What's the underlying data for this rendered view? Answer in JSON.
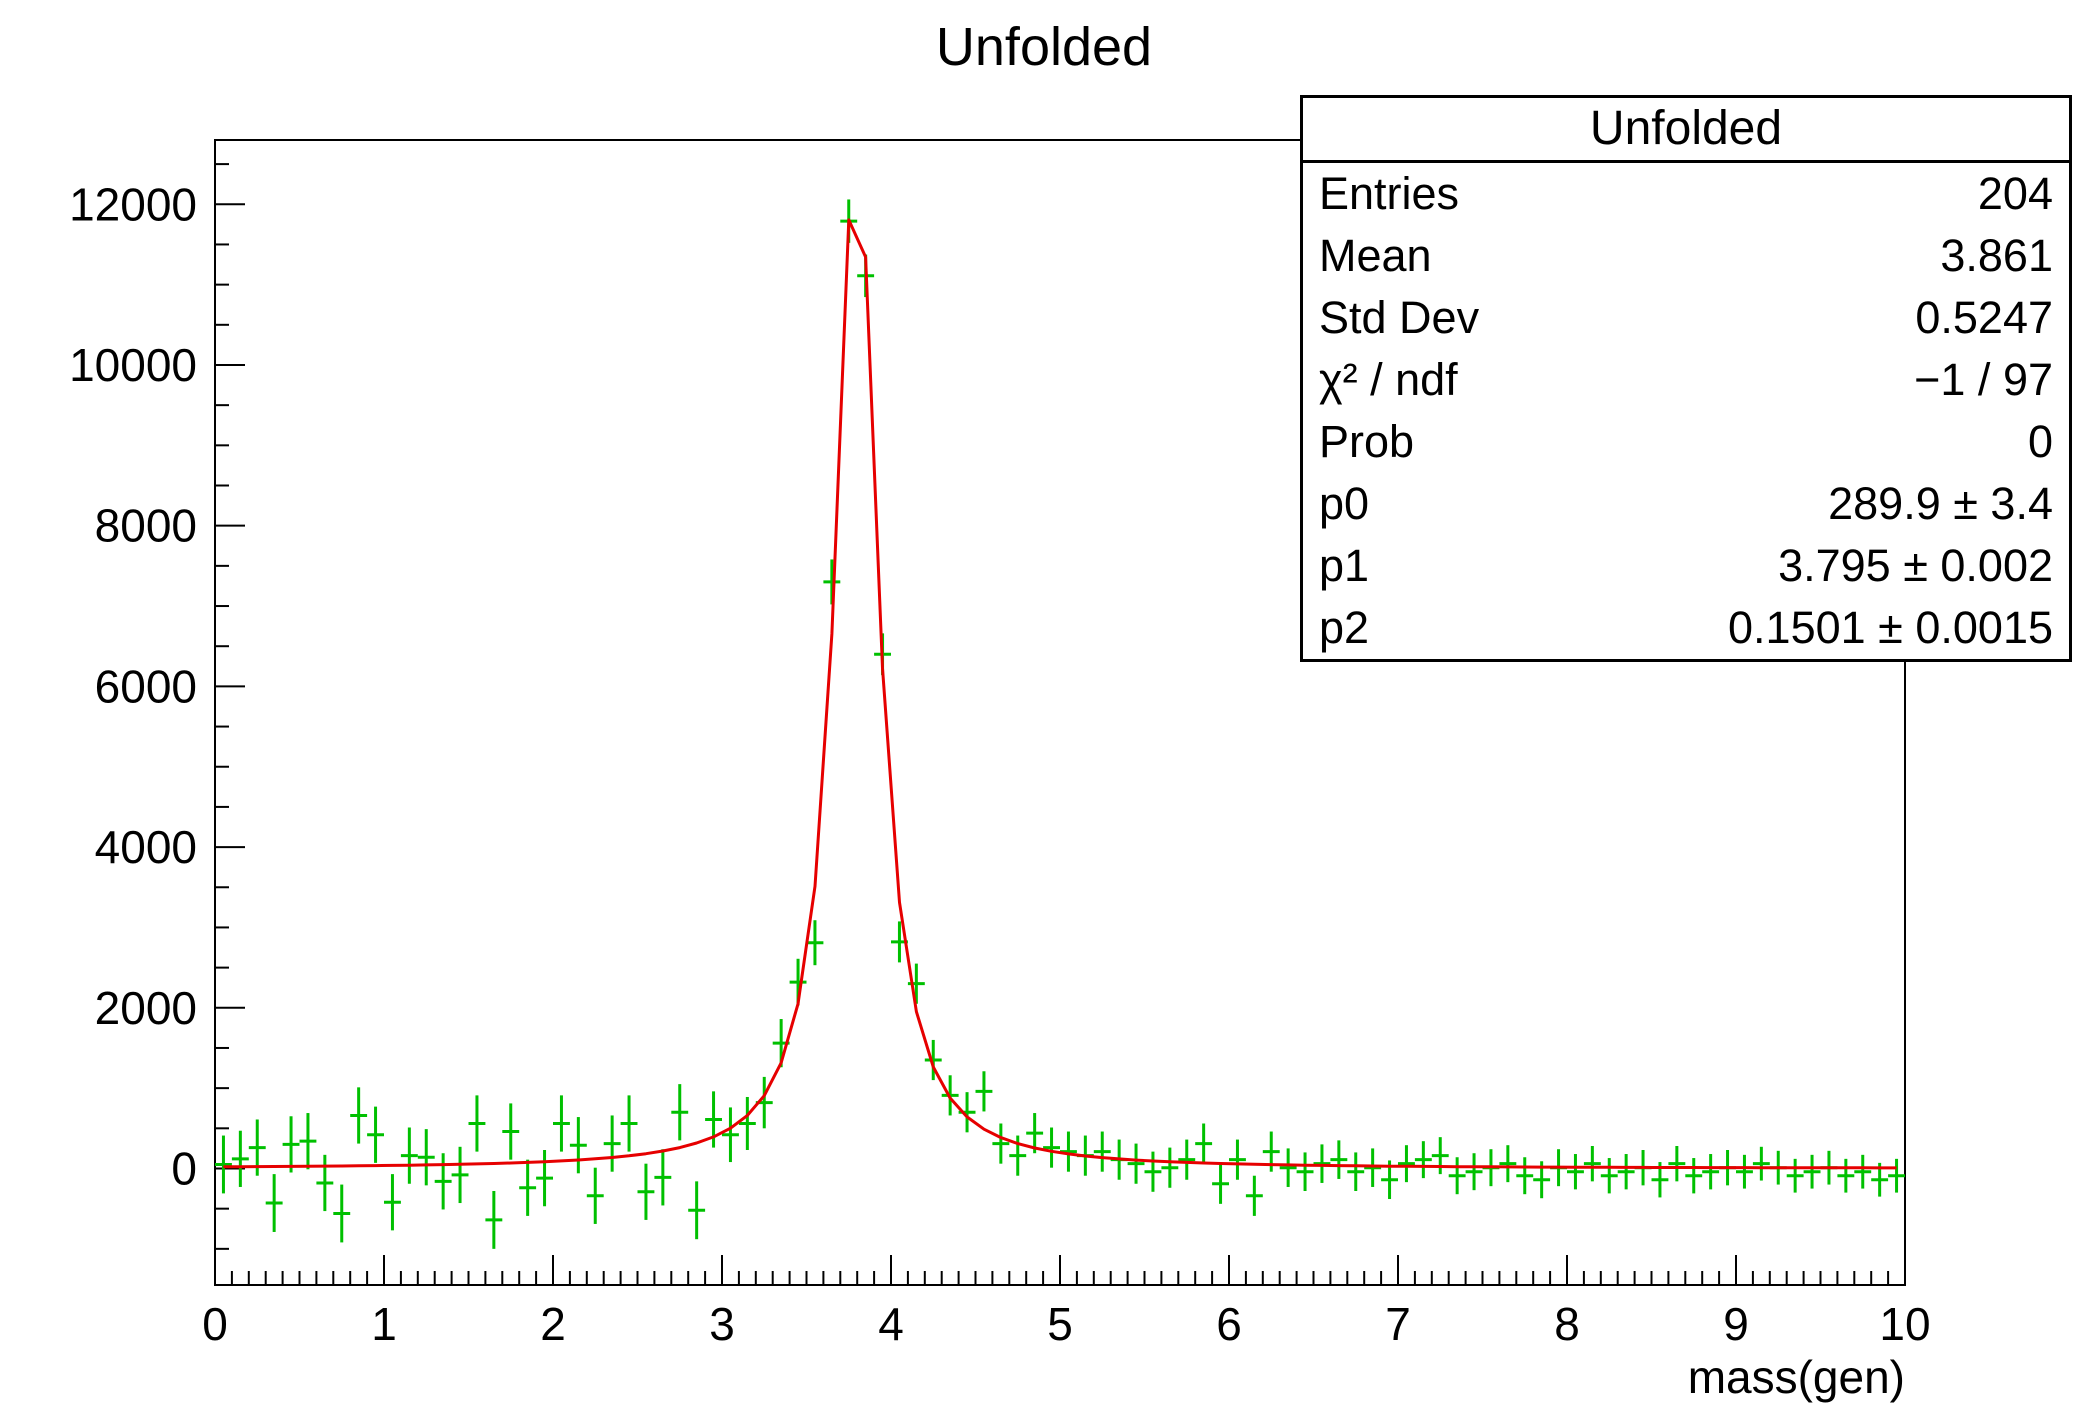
{
  "page": {
    "title": "Unfolded"
  },
  "colors": {
    "points": "#00c000",
    "fit": "#e60000",
    "frame": "#000000",
    "text": "#000000"
  },
  "axes": {
    "x": {
      "label": "mass(gen)",
      "min": 0,
      "max": 10,
      "major_ticks": [
        0,
        1,
        2,
        3,
        4,
        5,
        6,
        7,
        8,
        9,
        10
      ],
      "minor_step": 0.1
    },
    "y": {
      "label": "",
      "min": -1450,
      "max": 12800,
      "major_ticks": [
        0,
        2000,
        4000,
        6000,
        8000,
        10000,
        12000
      ],
      "minor_step": 500
    }
  },
  "stats": {
    "title": "Unfolded",
    "rows": [
      {
        "label": "Entries",
        "value": "204"
      },
      {
        "label": "Mean",
        "value": "3.861"
      },
      {
        "label": "Std Dev",
        "value": "0.5247"
      },
      {
        "label": "χ² / ndf",
        "value": "−1 / 97"
      },
      {
        "label": "Prob",
        "value": "0"
      },
      {
        "label": "p0",
        "value": "289.9 ± 3.4"
      },
      {
        "label": "p1",
        "value": "3.795 ± 0.002"
      },
      {
        "label": "p2",
        "value": "0.1501 ± 0.0015"
      }
    ]
  },
  "chart_data": {
    "type": "scatter",
    "title": "Unfolded",
    "xlabel": "mass(gen)",
    "ylabel": "",
    "xlim": [
      0,
      10
    ],
    "ylim": [
      -1450,
      12800
    ],
    "legend": "none",
    "grid": false,
    "series_info": [
      {
        "name": "unfolded-data",
        "style": "green error-bar crosses, bin width 0.1"
      },
      {
        "name": "fit-curve",
        "style": "red line, p0/((x-p1)^2+p2^2)"
      }
    ],
    "points": [
      [
        0.05,
        50,
        360
      ],
      [
        0.15,
        120,
        350
      ],
      [
        0.25,
        260,
        350
      ],
      [
        0.35,
        -430,
        360
      ],
      [
        0.45,
        300,
        350
      ],
      [
        0.55,
        340,
        350
      ],
      [
        0.65,
        -180,
        350
      ],
      [
        0.75,
        -560,
        360
      ],
      [
        0.85,
        660,
        350
      ],
      [
        0.95,
        420,
        350
      ],
      [
        1.05,
        -420,
        350
      ],
      [
        1.15,
        160,
        350
      ],
      [
        1.25,
        140,
        350
      ],
      [
        1.35,
        -160,
        350
      ],
      [
        1.45,
        -80,
        350
      ],
      [
        1.55,
        560,
        350
      ],
      [
        1.65,
        -640,
        360
      ],
      [
        1.75,
        460,
        350
      ],
      [
        1.85,
        -240,
        350
      ],
      [
        1.95,
        -120,
        350
      ],
      [
        2.05,
        560,
        350
      ],
      [
        2.15,
        290,
        350
      ],
      [
        2.25,
        -340,
        350
      ],
      [
        2.35,
        310,
        350
      ],
      [
        2.45,
        560,
        350
      ],
      [
        2.55,
        -290,
        350
      ],
      [
        2.65,
        -110,
        350
      ],
      [
        2.75,
        700,
        350
      ],
      [
        2.85,
        -520,
        360
      ],
      [
        2.95,
        610,
        350
      ],
      [
        3.05,
        420,
        340
      ],
      [
        3.15,
        560,
        330
      ],
      [
        3.25,
        820,
        320
      ],
      [
        3.35,
        1560,
        300
      ],
      [
        3.45,
        2320,
        290
      ],
      [
        3.55,
        2810,
        280
      ],
      [
        3.65,
        7300,
        280
      ],
      [
        3.75,
        11790,
        270
      ],
      [
        3.85,
        11110,
        265
      ],
      [
        3.95,
        6400,
        260
      ],
      [
        4.05,
        2820,
        255
      ],
      [
        4.15,
        2300,
        250
      ],
      [
        4.25,
        1350,
        250
      ],
      [
        4.35,
        910,
        250
      ],
      [
        4.45,
        700,
        250
      ],
      [
        4.55,
        960,
        250
      ],
      [
        4.65,
        310,
        250
      ],
      [
        4.75,
        160,
        250
      ],
      [
        4.85,
        440,
        250
      ],
      [
        4.95,
        260,
        250
      ],
      [
        5.05,
        210,
        250
      ],
      [
        5.15,
        160,
        250
      ],
      [
        5.25,
        210,
        250
      ],
      [
        5.35,
        110,
        250
      ],
      [
        5.45,
        60,
        250
      ],
      [
        5.55,
        -40,
        250
      ],
      [
        5.65,
        10,
        250
      ],
      [
        5.75,
        110,
        250
      ],
      [
        5.85,
        310,
        250
      ],
      [
        5.95,
        -190,
        250
      ],
      [
        6.05,
        110,
        250
      ],
      [
        6.15,
        -340,
        250
      ],
      [
        6.25,
        210,
        250
      ],
      [
        6.35,
        10,
        240
      ],
      [
        6.45,
        -40,
        240
      ],
      [
        6.55,
        60,
        240
      ],
      [
        6.65,
        110,
        240
      ],
      [
        6.75,
        -40,
        240
      ],
      [
        6.85,
        10,
        240
      ],
      [
        6.95,
        -140,
        240
      ],
      [
        7.05,
        60,
        230
      ],
      [
        7.15,
        110,
        230
      ],
      [
        7.25,
        160,
        230
      ],
      [
        7.35,
        -90,
        230
      ],
      [
        7.45,
        -40,
        230
      ],
      [
        7.55,
        10,
        230
      ],
      [
        7.65,
        60,
        230
      ],
      [
        7.75,
        -90,
        230
      ],
      [
        7.85,
        -140,
        230
      ],
      [
        7.95,
        10,
        230
      ],
      [
        8.05,
        -40,
        220
      ],
      [
        8.15,
        60,
        220
      ],
      [
        8.25,
        -90,
        220
      ],
      [
        8.35,
        -40,
        220
      ],
      [
        8.45,
        10,
        220
      ],
      [
        8.55,
        -140,
        220
      ],
      [
        8.65,
        60,
        220
      ],
      [
        8.75,
        -90,
        220
      ],
      [
        8.85,
        -40,
        220
      ],
      [
        8.95,
        10,
        220
      ],
      [
        9.05,
        -40,
        210
      ],
      [
        9.15,
        60,
        210
      ],
      [
        9.25,
        10,
        210
      ],
      [
        9.35,
        -90,
        210
      ],
      [
        9.45,
        -40,
        210
      ],
      [
        9.55,
        10,
        210
      ],
      [
        9.65,
        -90,
        210
      ],
      [
        9.75,
        -40,
        210
      ],
      [
        9.85,
        -140,
        210
      ],
      [
        9.95,
        -90,
        210
      ]
    ],
    "fit": {
      "form": "p0/((x-p1)^2+p2^2)",
      "p0": 289.9,
      "p1": 3.795,
      "p2": 0.1501,
      "sample_start": 0.05,
      "sample_step": 0.1,
      "sample_count": 100
    }
  }
}
